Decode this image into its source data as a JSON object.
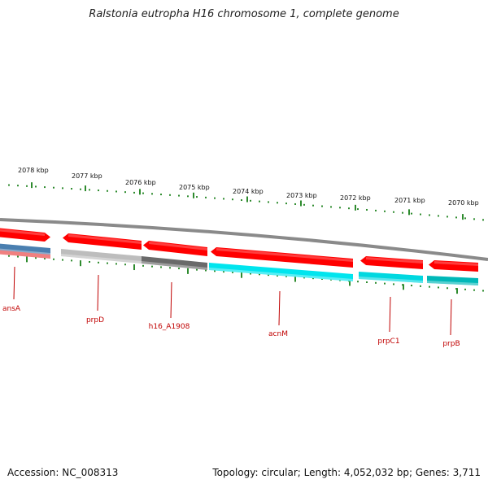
{
  "title": "Ralstonia eutropha H16 chromosome 1, complete genome",
  "footer": {
    "accession": "Accession: NC_008313",
    "summary": "Topology: circular; Length: 4,052,032 bp; Genes: 3,711"
  },
  "scale": {
    "labels": [
      "2078 kbp",
      "2077 kbp",
      "2076 kbp",
      "2075 kbp",
      "2074 kbp",
      "2073 kbp",
      "2072 kbp",
      "2071 kbp",
      "2070 kbp"
    ]
  },
  "genes": [
    {
      "label": "ansA",
      "strand": "forward",
      "color": "#ff0000",
      "lower_color": "#4a7fb0"
    },
    {
      "label": "prpD",
      "strand": "reverse",
      "color": "#ff0000",
      "lower_color": "#bdbdbd"
    },
    {
      "label": "h16_A1908",
      "strand": "reverse",
      "color": "#ff0000",
      "lower_color": "#6a6a6a"
    },
    {
      "label": "acnM",
      "strand": "reverse",
      "color": "#ff0000",
      "lower_color": "#00e5ee"
    },
    {
      "label": "prpC1",
      "strand": "reverse",
      "color": "#ff0000",
      "lower_color": "#00d8e0"
    },
    {
      "label": "prpB",
      "strand": "reverse",
      "color": "#ff0000",
      "lower_color": "#00b8b8"
    }
  ],
  "colors": {
    "backbone": "#8a8a8a",
    "ticks": "#2e8b2e",
    "label_line": "#c00000"
  }
}
